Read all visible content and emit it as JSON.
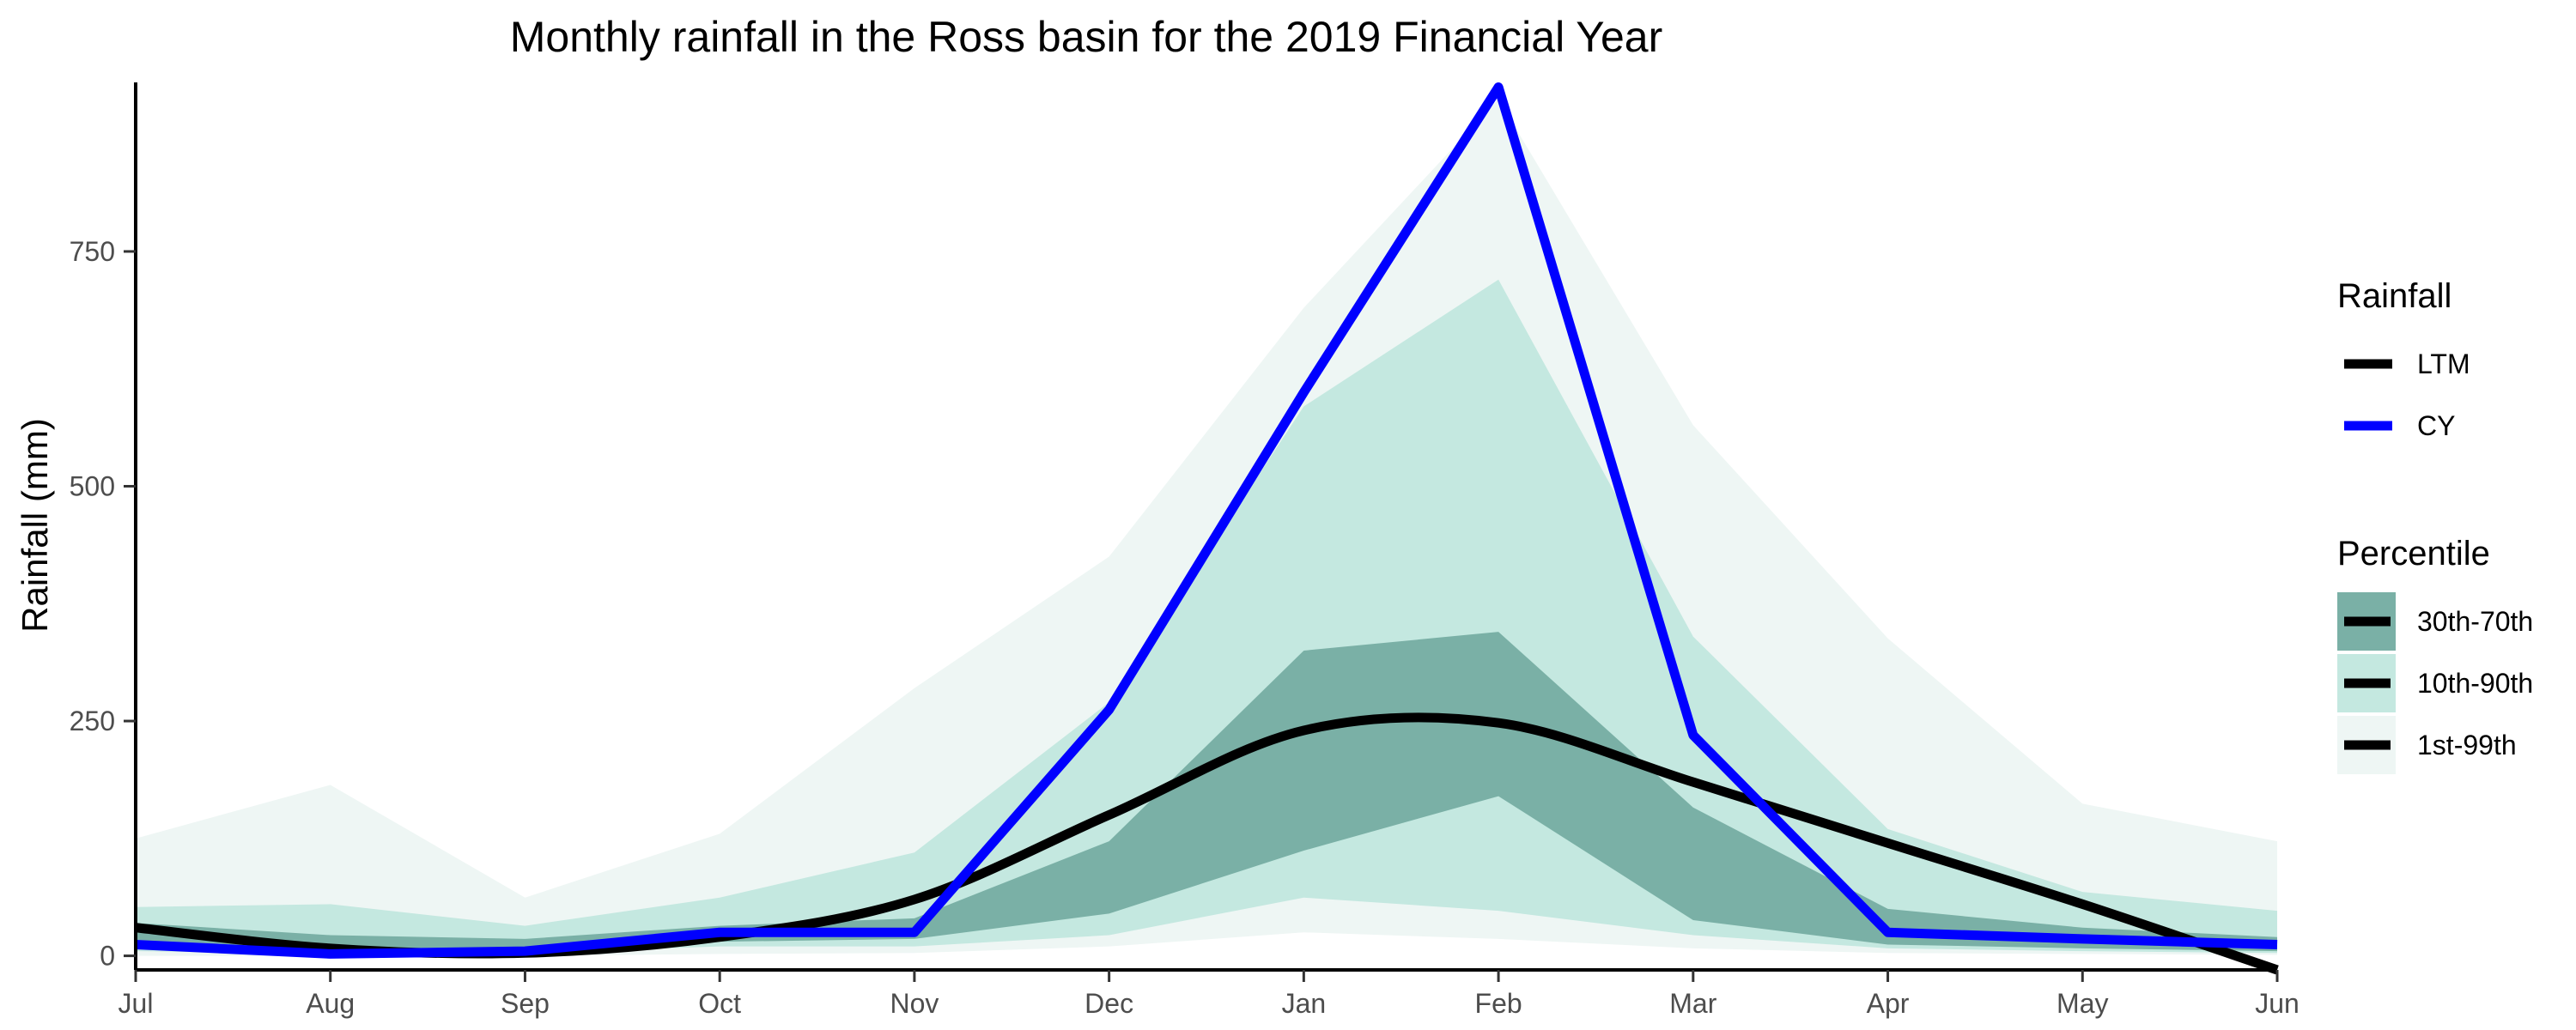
{
  "chart_data": {
    "type": "line",
    "title": "Monthly rainfall in the Ross basin for the 2019 Financial Year",
    "xlabel": "",
    "ylabel": "Rainfall (mm)",
    "categories": [
      "Jul",
      "Aug",
      "Sep",
      "Oct",
      "Nov",
      "Dec",
      "Jan",
      "Feb",
      "Mar",
      "Apr",
      "May",
      "Jun"
    ],
    "ylim": [
      -15,
      930
    ],
    "yticks": [
      0,
      250,
      500,
      750
    ],
    "grid": false,
    "legend_position": "right",
    "legend": {
      "rainfall_title": "Rainfall",
      "percentile_title": "Percentile"
    },
    "series": [
      {
        "name": "LTM",
        "color": "#000000",
        "values": [
          30,
          8,
          3,
          20,
          60,
          150,
          240,
          248,
          185,
          120,
          55,
          -15
        ]
      },
      {
        "name": "CY",
        "color": "#0000ff",
        "values": [
          12,
          2,
          5,
          25,
          25,
          262,
          600,
          925,
          235,
          25,
          18,
          12
        ]
      }
    ],
    "bands": [
      {
        "name": "1st-99th",
        "color": "#eef6f4",
        "lower": [
          0,
          0,
          0,
          2,
          3,
          10,
          25,
          18,
          8,
          3,
          2,
          1
        ],
        "upper": [
          125,
          182,
          62,
          130,
          285,
          425,
          690,
          912,
          565,
          338,
          162,
          122
        ]
      },
      {
        "name": "10th-90th",
        "color": "#c4e8e0",
        "lower": [
          5,
          2,
          3,
          10,
          10,
          22,
          62,
          48,
          22,
          8,
          5,
          3
        ],
        "upper": [
          52,
          55,
          32,
          62,
          110,
          270,
          585,
          720,
          340,
          135,
          68,
          48
        ]
      },
      {
        "name": "30th-70th",
        "color": "#7ab0a6",
        "lower": [
          12,
          5,
          8,
          15,
          18,
          45,
          112,
          170,
          38,
          12,
          8,
          5
        ],
        "upper": [
          35,
          22,
          18,
          32,
          40,
          122,
          325,
          345,
          158,
          50,
          30,
          20
        ]
      }
    ]
  }
}
